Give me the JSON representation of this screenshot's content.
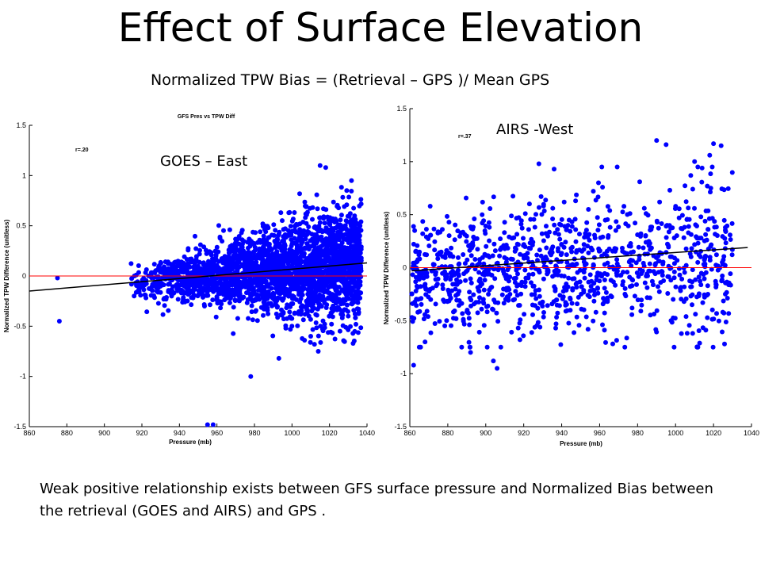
{
  "slide": {
    "title": "Effect of Surface Elevation",
    "subtitle": "Normalized TPW Bias = (Retrieval – GPS )/ Mean GPS",
    "caption": "Weak positive relationship exists between GFS surface pressure and Normalized Bias between the retrieval (GOES and AIRS) and GPS ."
  },
  "chart_data": [
    {
      "type": "scatter",
      "panel_label": "GOES – East",
      "title": "GFS Pres vs TPW Diff",
      "annotation": "r=.20",
      "xlabel": "Pressure (mb)",
      "ylabel": "Normalized TPW Difference (unitless)",
      "xlim": [
        860,
        1040
      ],
      "ylim": [
        -1.5,
        1.5
      ],
      "xticks": [
        "860",
        "880",
        "900",
        "920",
        "940",
        "960",
        "980",
        "1000",
        "1020",
        "1040"
      ],
      "yticks": [
        "-1.5",
        "-1",
        "-0.5",
        "0",
        "0.5",
        "1",
        "1.5"
      ],
      "point_color": "#0000FF",
      "zero_line_color": "#FF0000",
      "fit_line_color": "#000000",
      "fit_line": {
        "x": [
          860,
          1040
        ],
        "y": [
          -0.15,
          0.13
        ]
      },
      "outliers": {
        "x": [
          875,
          876,
          955,
          958,
          978,
          993,
          1015,
          1018,
          1012,
          1010,
          1000
        ],
        "y": [
          -0.02,
          -0.45,
          -1.48,
          -1.48,
          -1.0,
          -0.82,
          1.1,
          1.08,
          -0.68,
          -0.6,
          -0.5
        ]
      },
      "cloud": {
        "x_min": 912,
        "x_max": 1037,
        "mean_slope": 0.0015,
        "spread_at_min": 0.12,
        "spread_at_max": 0.55
      }
    },
    {
      "type": "scatter",
      "panel_label": "AIRS -West",
      "annotation": "r=.37",
      "xlabel": "Pressure (mb)",
      "ylabel": "Normalized TPW Difference (unitless)",
      "xlim": [
        860,
        1040
      ],
      "ylim": [
        -1.5,
        1.5
      ],
      "xticks": [
        "860",
        "880",
        "900",
        "920",
        "940",
        "960",
        "980",
        "1000",
        "1020",
        "1040"
      ],
      "yticks": [
        "-1.5",
        "-1",
        "-0.5",
        "0",
        "0.5",
        "1",
        "1.5"
      ],
      "point_color": "#0000FF",
      "zero_line_color": "#FF0000",
      "fit_line_color": "#000000",
      "fit_line": {
        "x": [
          861,
          1038
        ],
        "y": [
          -0.03,
          0.19
        ]
      },
      "outliers": {
        "x": [
          862,
          868,
          892,
          904,
          906,
          918,
          928,
          936,
          990,
          995,
          1014,
          1018,
          1020,
          1024,
          1010,
          1008
        ],
        "y": [
          -0.92,
          -0.7,
          -0.8,
          -0.88,
          -0.95,
          -0.68,
          0.98,
          0.93,
          1.2,
          1.16,
          0.94,
          1.06,
          1.17,
          1.15,
          1.0,
          0.87
        ]
      },
      "cloud": {
        "x_min": 861,
        "x_max": 1030,
        "mean_slope": 0.0012,
        "spread": 0.3,
        "count": 1100
      }
    }
  ]
}
